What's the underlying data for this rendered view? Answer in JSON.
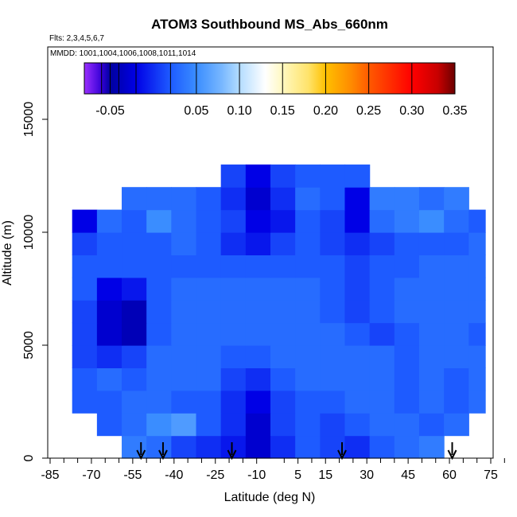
{
  "chart_data": {
    "type": "heatmap",
    "title": "ATOM3 Southbound MS_Abs_660nm",
    "subtitle_lines": [
      "Flts: 2,3,4,5,6,7",
      "MMDD: 1001,1004,1006,1008,1011,1014"
    ],
    "xlabel": "Latitude (deg N)",
    "ylabel": "Altitude (m)",
    "x_ticks": [
      -85,
      -70,
      -55,
      -40,
      -25,
      -10,
      5,
      15,
      30,
      45,
      60,
      75
    ],
    "x_tick_labels": [
      "-85",
      "-70",
      "-55",
      "-40",
      "-25",
      "-10",
      "5",
      "15",
      "30",
      "45",
      "60",
      "75"
    ],
    "x_minor_ticks": [
      -80,
      -75,
      -65,
      -60,
      -50,
      -45,
      -35,
      -30,
      -20,
      -15,
      0,
      10,
      20,
      25,
      35,
      40,
      50,
      55,
      65,
      70,
      80
    ],
    "xlim": [
      -85,
      85
    ],
    "y_ticks": [
      0,
      5000,
      10000,
      15000
    ],
    "y_tick_labels": [
      "0",
      "5000",
      "10000",
      "15000"
    ],
    "ylim": [
      0,
      17500
    ],
    "colorbar": {
      "min": -0.08,
      "max": 0.35,
      "tick_values": [
        -0.05,
        0.05,
        0.1,
        0.15,
        0.2,
        0.25,
        0.3,
        0.35
      ],
      "tick_labels": [
        "-0.05",
        "0.05",
        "0.10",
        "0.15",
        "0.20",
        "0.25",
        "0.30",
        "0.35"
      ],
      "stops": [
        {
          "v": -0.08,
          "color": "#9b30ff"
        },
        {
          "v": -0.06,
          "color": "#3500d6"
        },
        {
          "v": -0.05,
          "color": "#0000a0"
        },
        {
          "v": -0.02,
          "color": "#0000e6"
        },
        {
          "v": 0.02,
          "color": "#1e5bff"
        },
        {
          "v": 0.05,
          "color": "#3a8dff"
        },
        {
          "v": 0.08,
          "color": "#79b8ff"
        },
        {
          "v": 0.1,
          "color": "#b3dcff"
        },
        {
          "v": 0.13,
          "color": "#ffffff"
        },
        {
          "v": 0.15,
          "color": "#fff8c0"
        },
        {
          "v": 0.18,
          "color": "#ffe36a"
        },
        {
          "v": 0.2,
          "color": "#ffc000"
        },
        {
          "v": 0.23,
          "color": "#ff8a00"
        },
        {
          "v": 0.25,
          "color": "#ff5a00"
        },
        {
          "v": 0.3,
          "color": "#ff0000"
        },
        {
          "v": 0.33,
          "color": "#c80000"
        },
        {
          "v": 0.35,
          "color": "#6b0000"
        }
      ]
    },
    "arrow_latitudes": [
      -52,
      -44,
      -19,
      21,
      61
    ],
    "grid": false,
    "cells": {
      "lat_edges": [
        -77,
        -68,
        -59,
        -50,
        -41,
        -32,
        -23,
        -14,
        -5,
        4,
        13,
        22,
        31,
        40,
        49,
        58,
        67,
        73
      ],
      "alt_edges": [
        0,
        1000,
        2000,
        3000,
        4000,
        5000,
        6000,
        7000,
        8000,
        9000,
        10000,
        11000,
        12000,
        13000
      ],
      "rows": [
        [
          null,
          null,
          0.04,
          0.03,
          0.01,
          0.0,
          -0.01,
          -0.03,
          0.0,
          0.02,
          0.01,
          0.0,
          0.02,
          0.03,
          0.04,
          null,
          null
        ],
        [
          null,
          0.02,
          0.03,
          0.05,
          0.06,
          0.02,
          0.0,
          -0.03,
          0.01,
          0.02,
          0.01,
          0.02,
          0.03,
          0.03,
          0.02,
          0.03,
          null
        ],
        [
          0.02,
          0.02,
          0.03,
          0.03,
          0.02,
          0.02,
          0.0,
          -0.02,
          0.01,
          0.02,
          0.02,
          0.03,
          0.03,
          0.02,
          0.03,
          0.02,
          0.03
        ],
        [
          0.02,
          0.03,
          0.02,
          0.03,
          0.03,
          0.03,
          0.01,
          0.0,
          0.02,
          0.03,
          0.03,
          0.03,
          0.03,
          0.02,
          0.03,
          0.02,
          0.03
        ],
        [
          0.01,
          0.0,
          0.01,
          0.03,
          0.03,
          0.03,
          0.02,
          0.02,
          0.03,
          0.03,
          0.03,
          0.03,
          0.03,
          0.02,
          0.03,
          0.03,
          0.03
        ],
        [
          0.01,
          -0.03,
          -0.04,
          0.02,
          0.03,
          0.03,
          0.03,
          0.03,
          0.03,
          0.03,
          0.03,
          0.02,
          0.01,
          0.02,
          0.03,
          0.03,
          0.02
        ],
        [
          0.01,
          -0.03,
          -0.04,
          0.02,
          0.03,
          0.03,
          0.03,
          0.03,
          0.03,
          0.03,
          0.02,
          0.01,
          0.02,
          0.03,
          0.03,
          0.03,
          0.03
        ],
        [
          0.02,
          -0.02,
          -0.01,
          0.02,
          0.03,
          0.03,
          0.03,
          0.03,
          0.03,
          0.03,
          0.02,
          0.01,
          0.02,
          0.03,
          0.03,
          0.03,
          0.03
        ],
        [
          0.02,
          0.02,
          0.02,
          0.02,
          0.02,
          0.02,
          0.02,
          0.02,
          0.02,
          0.02,
          0.02,
          0.01,
          0.02,
          0.02,
          0.03,
          0.03,
          0.03
        ],
        [
          0.01,
          0.02,
          0.02,
          0.02,
          0.03,
          0.02,
          0.0,
          -0.01,
          0.01,
          0.02,
          0.01,
          0.0,
          0.01,
          0.02,
          0.02,
          0.02,
          0.03
        ],
        [
          -0.02,
          0.03,
          0.02,
          0.05,
          0.03,
          0.02,
          0.01,
          -0.02,
          -0.01,
          0.02,
          0.01,
          -0.02,
          0.03,
          0.04,
          0.05,
          0.03,
          0.02
        ],
        [
          null,
          null,
          0.03,
          0.03,
          0.03,
          0.02,
          0.0,
          -0.03,
          0.0,
          0.03,
          0.02,
          -0.02,
          0.04,
          0.04,
          0.03,
          0.04,
          null
        ],
        [
          null,
          null,
          null,
          null,
          null,
          null,
          0.01,
          -0.02,
          0.01,
          0.02,
          0.02,
          0.02,
          null,
          null,
          null,
          null,
          null
        ]
      ]
    }
  }
}
